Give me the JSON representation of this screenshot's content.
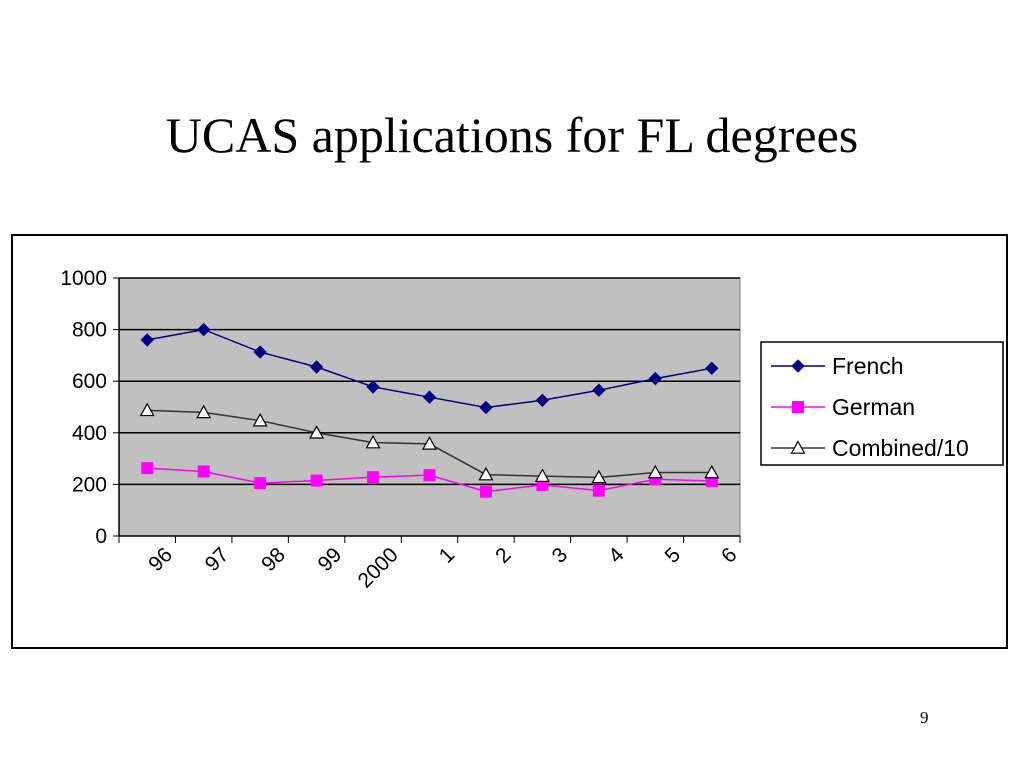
{
  "slide": {
    "title": "UCAS applications for FL degrees",
    "page_number": "9"
  },
  "chart_data": {
    "type": "line",
    "title": "",
    "xlabel": "",
    "ylabel": "",
    "categories": [
      "96",
      "97",
      "98",
      "99",
      "2000",
      "1",
      "2",
      "3",
      "4",
      "5",
      "6"
    ],
    "ylim": [
      0,
      1000
    ],
    "yticks": [
      0,
      200,
      400,
      600,
      800,
      1000
    ],
    "grid": "horizontal",
    "plot_background": "#c0c0c0",
    "legend_position": "right",
    "series": [
      {
        "name": "French",
        "values": [
          760,
          800,
          713,
          655,
          578,
          538,
          498,
          526,
          565,
          610,
          650
        ],
        "color": "#000080",
        "marker": "diamond"
      },
      {
        "name": "German",
        "values": [
          263,
          250,
          205,
          215,
          228,
          236,
          172,
          198,
          176,
          220,
          213
        ],
        "color": "#ff00ff",
        "marker": "square"
      },
      {
        "name": "Combined/10",
        "values": [
          487,
          479,
          447,
          400,
          362,
          357,
          238,
          232,
          227,
          246,
          246
        ],
        "color": "#333333",
        "marker": "triangle"
      }
    ]
  }
}
